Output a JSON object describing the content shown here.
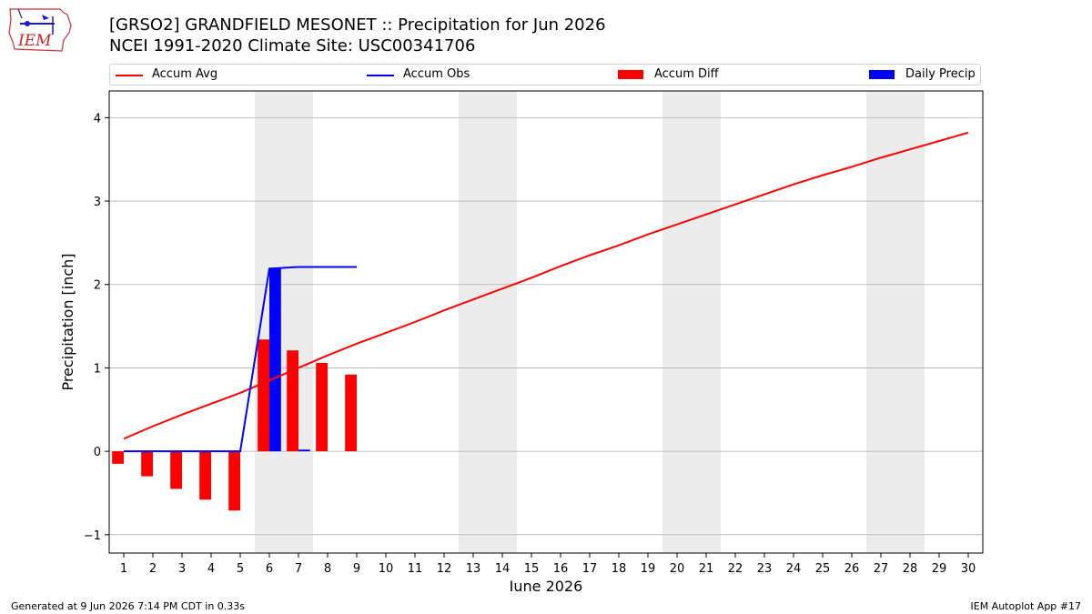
{
  "header": {
    "logo_text": "IEM",
    "title": "[GRSO2] GRANDFIELD MESONET :: Precipitation for Jun 2026",
    "subtitle": "NCEI 1991-2020 Climate Site: USC00341706"
  },
  "footer": {
    "generated": "Generated at 9 Jun 2026 7:14 PM CDT in 0.33s",
    "app": "IEM Autoplot App #17"
  },
  "colors": {
    "accum_avg": "#ff0000",
    "accum_obs": "#0000ff",
    "accum_diff": "#ff0000",
    "daily_precip": "#0000ff",
    "weekend_shade": "#ececec",
    "grid": "#b0b0b0"
  },
  "chart_data": {
    "type": "bar",
    "xlabel": "June 2026",
    "ylabel": "Precipitation [inch]",
    "xlim": [
      0.5,
      30.5
    ],
    "ylim": [
      -1.22,
      4.32
    ],
    "x_ticks": [
      1,
      2,
      3,
      4,
      5,
      6,
      7,
      8,
      9,
      10,
      11,
      12,
      13,
      14,
      15,
      16,
      17,
      18,
      19,
      20,
      21,
      22,
      23,
      24,
      25,
      26,
      27,
      28,
      29,
      30
    ],
    "y_ticks": [
      -1,
      0,
      1,
      2,
      3,
      4
    ],
    "y_tick_labels": [
      "−1",
      "0",
      "1",
      "2",
      "3",
      "4"
    ],
    "grid": "horizontal",
    "legend_position": "top",
    "weekend_spans": [
      [
        5.5,
        7.5
      ],
      [
        12.5,
        14.5
      ],
      [
        19.5,
        21.5
      ],
      [
        26.5,
        28.5
      ]
    ],
    "series": [
      {
        "name": "Accum Avg",
        "kind": "line",
        "x": [
          1,
          2,
          3,
          4,
          5,
          6,
          7,
          8,
          9,
          10,
          11,
          12,
          13,
          14,
          15,
          16,
          17,
          18,
          19,
          20,
          21,
          22,
          23,
          24,
          25,
          26,
          27,
          28,
          29,
          30
        ],
        "values": [
          0.15,
          0.3,
          0.44,
          0.57,
          0.7,
          0.85,
          1.0,
          1.15,
          1.29,
          1.42,
          1.55,
          1.69,
          1.82,
          1.95,
          2.08,
          2.22,
          2.35,
          2.47,
          2.6,
          2.72,
          2.84,
          2.96,
          3.08,
          3.2,
          3.31,
          3.41,
          3.52,
          3.62,
          3.72,
          3.82
        ]
      },
      {
        "name": "Accum Obs",
        "kind": "line",
        "x": [
          1,
          2,
          3,
          4,
          5,
          6,
          7,
          8,
          9
        ],
        "values": [
          0,
          0,
          0,
          0,
          0,
          2.19,
          2.21,
          2.21,
          2.21
        ]
      },
      {
        "name": "Accum Diff",
        "kind": "bar",
        "x": [
          1,
          2,
          3,
          4,
          5,
          6,
          7,
          8,
          9
        ],
        "values": [
          -0.15,
          -0.3,
          -0.45,
          -0.58,
          -0.71,
          1.34,
          1.21,
          1.06,
          0.92
        ]
      },
      {
        "name": "Daily Precip",
        "kind": "bar",
        "x": [
          1,
          2,
          3,
          4,
          5,
          6,
          7,
          8,
          9
        ],
        "values": [
          0,
          0,
          0,
          0,
          0,
          2.19,
          0.02,
          0,
          0
        ]
      }
    ]
  }
}
